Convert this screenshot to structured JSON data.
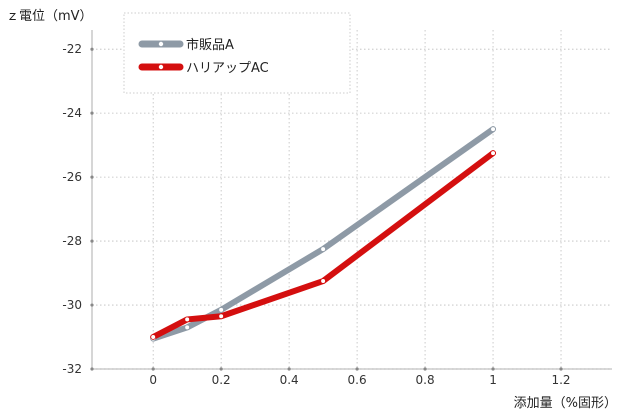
{
  "chart_data": {
    "type": "line",
    "title": "",
    "ylabel": "ｚ電位（mV）",
    "xlabel": "添加量（%固形）",
    "xlim": [
      -0.18,
      1.35
    ],
    "ylim": [
      -32,
      -21.4
    ],
    "x_ticks": [
      0,
      0.2,
      0.4,
      0.6,
      0.8,
      1,
      1.2
    ],
    "x_tick_labels": [
      "0",
      "0.2",
      "0.4",
      "0.6",
      "0.8",
      "1",
      "1.2"
    ],
    "y_ticks": [
      -32,
      -30,
      -28,
      -26,
      -24,
      -22
    ],
    "y_tick_labels": [
      "-32",
      "-30",
      "-28",
      "-26",
      "-24",
      "-22"
    ],
    "grid": true,
    "legend_position": "top-left",
    "series": [
      {
        "name": "市販品A",
        "color": "#8e9aa6",
        "x": [
          0,
          0.1,
          0.2,
          0.5,
          1
        ],
        "y": [
          -31.05,
          -30.7,
          -30.15,
          -28.25,
          -24.5
        ]
      },
      {
        "name": "ハリアップAC",
        "color": "#d40f0f",
        "x": [
          0,
          0.1,
          0.2,
          0.5,
          1
        ],
        "y": [
          -31,
          -30.45,
          -30.35,
          -29.25,
          -25.25
        ]
      }
    ]
  }
}
